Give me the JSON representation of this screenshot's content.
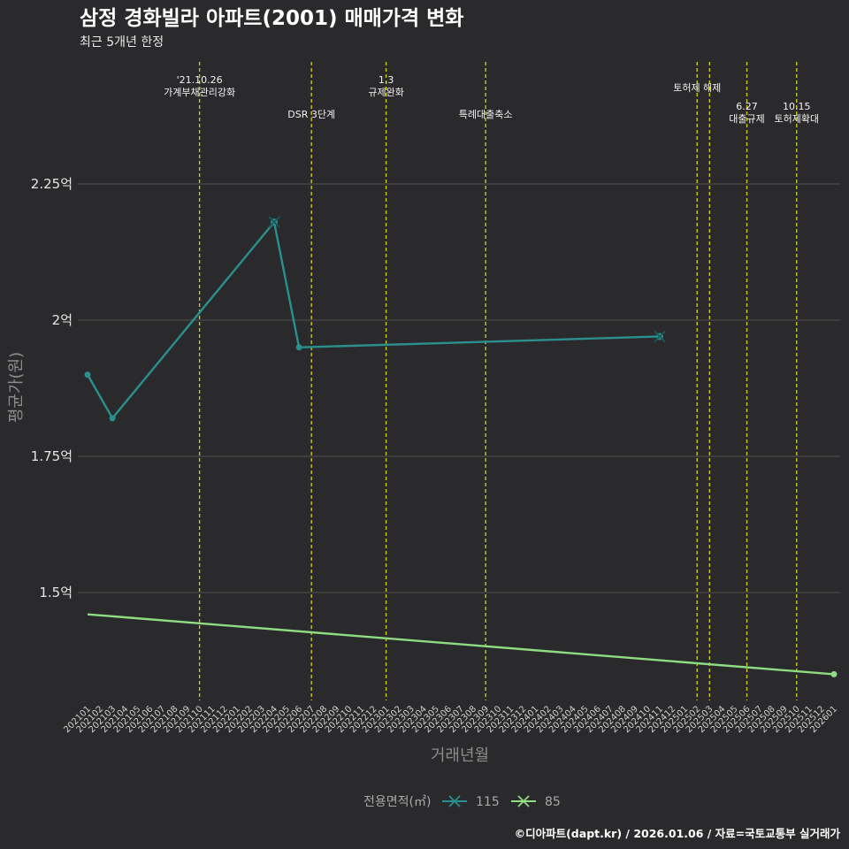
{
  "chart_data": {
    "type": "line",
    "title": "삼정 경화빌라 아파트(2001) 매매가격 변화",
    "subtitle": "최근 5개년 한정",
    "xlabel": "거래년월",
    "ylabel": "평균가(원)",
    "ylim": [
      1.32,
      2.52
    ],
    "y_ticks": [
      1.5,
      1.75,
      2.0,
      2.25
    ],
    "y_tick_labels": [
      "1.5억",
      "1.75억",
      "2억",
      "2.25억"
    ],
    "x_categories": [
      "202101",
      "202102",
      "202103",
      "202104",
      "202105",
      "202106",
      "202107",
      "202108",
      "202109",
      "202110",
      "202111",
      "202112",
      "202201",
      "202202",
      "202203",
      "202204",
      "202205",
      "202206",
      "202207",
      "202208",
      "202209",
      "202210",
      "202211",
      "202212",
      "202301",
      "202302",
      "202303",
      "202304",
      "202305",
      "202306",
      "202307",
      "202308",
      "202309",
      "202310",
      "202311",
      "202312",
      "202401",
      "202402",
      "202403",
      "202404",
      "202405",
      "202406",
      "202407",
      "202408",
      "202409",
      "202410",
      "202411",
      "202412",
      "202501",
      "202502",
      "202503",
      "202504",
      "202505",
      "202506",
      "202507",
      "202508",
      "202509",
      "202510",
      "202511",
      "202512",
      "202601"
    ],
    "series": [
      {
        "name": "115",
        "color": "#2a8f8e",
        "points": [
          {
            "x": "202101",
            "y": 1.9,
            "marker": "dot"
          },
          {
            "x": "202103",
            "y": 1.82,
            "marker": "dot"
          },
          {
            "x": "202204",
            "y": 2.18,
            "marker": "x"
          },
          {
            "x": "202206",
            "y": 1.95,
            "marker": "dot"
          },
          {
            "x": "202411",
            "y": 1.97,
            "marker": "x"
          }
        ]
      },
      {
        "name": "85",
        "color": "#8fdc82",
        "points": [
          {
            "x": "202101",
            "y": 1.46,
            "marker": "none"
          },
          {
            "x": "202601",
            "y": 1.35,
            "marker": "dot"
          }
        ]
      }
    ],
    "events": [
      {
        "x": "202110",
        "lines": [
          "'21.10.26",
          "가계부채관리강화"
        ],
        "row": "top"
      },
      {
        "x": "202207",
        "lines": [
          "DSR 3단계"
        ],
        "row": "mid"
      },
      {
        "x": "202301",
        "lines": [
          "1.3",
          "규제완화"
        ],
        "row": "top"
      },
      {
        "x": "202309",
        "lines": [
          "특례대출축소"
        ],
        "row": "mid"
      },
      {
        "x": "202502",
        "lines": [
          "토허제 해제"
        ],
        "row": "upper"
      },
      {
        "x": "202503",
        "lines": [],
        "row": "none"
      },
      {
        "x": "202506",
        "lines": [
          "6.27",
          "대출규제"
        ],
        "row": "low"
      },
      {
        "x": "202510",
        "lines": [
          "10.15",
          "토허제확대"
        ],
        "row": "low"
      }
    ],
    "legend": {
      "title": "전용면적(㎡)",
      "position": "bottom",
      "items": [
        "115",
        "85"
      ]
    },
    "grid": true
  },
  "caption": "©디아파트(dapt.kr) / 2026.01.06 / 자료=국토교통부 실거래가",
  "colors": {
    "background": "#2a2a2c",
    "grid": "#4a4a4a",
    "event_line": "#c8c81e"
  }
}
